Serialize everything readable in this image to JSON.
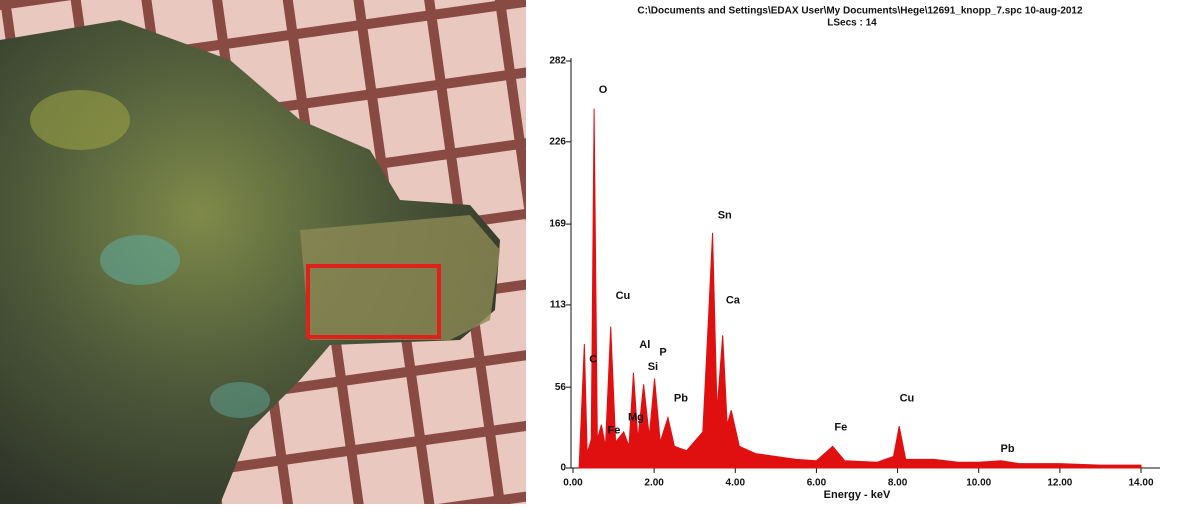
{
  "chart_data": {
    "type": "area",
    "title": "C:\\Documents and Settings\\EDAX User\\My Documents\\Hege\\12691_knopp_7.spc  10-aug-2012",
    "subtitle": "LSecs : 14",
    "x_label": "Energy - keV",
    "color": "#e01010",
    "xlim": [
      0,
      14.4
    ],
    "ylim": [
      0,
      282
    ],
    "xticks": [
      {
        "value": 0,
        "label": "0.00"
      },
      {
        "value": 2,
        "label": "2.00"
      },
      {
        "value": 4,
        "label": "4.00"
      },
      {
        "value": 6,
        "label": "6.00"
      },
      {
        "value": 8,
        "label": "8.00"
      },
      {
        "value": 10,
        "label": "10.00"
      },
      {
        "value": 12,
        "label": "12.00"
      },
      {
        "value": 14,
        "label": "14.00"
      }
    ],
    "yticks": [
      0,
      56,
      113,
      169,
      226,
      282
    ],
    "x": [
      0.15,
      0.28,
      0.35,
      0.45,
      0.52,
      0.6,
      0.7,
      0.8,
      0.93,
      1.05,
      1.25,
      1.38,
      1.49,
      1.6,
      1.74,
      1.88,
      2.01,
      2.15,
      2.34,
      2.5,
      2.8,
      3.2,
      3.35,
      3.44,
      3.55,
      3.69,
      3.8,
      3.9,
      4.1,
      4.5,
      5.0,
      5.5,
      6.0,
      6.4,
      6.7,
      7.5,
      7.9,
      8.04,
      8.2,
      8.9,
      9.5,
      10.0,
      10.55,
      11.0,
      12.0,
      13.0,
      14.0
    ],
    "values": [
      0,
      86,
      10,
      20,
      249,
      20,
      30,
      15,
      98,
      18,
      25,
      15,
      66,
      20,
      58,
      22,
      62,
      18,
      35,
      15,
      12,
      25,
      110,
      163,
      40,
      92,
      30,
      40,
      15,
      10,
      8,
      6,
      5,
      15,
      5,
      4,
      8,
      29,
      6,
      6,
      4,
      4,
      5,
      3,
      3,
      2,
      2
    ],
    "annotations": [
      {
        "text": "O",
        "x": 0.74,
        "y": 262
      },
      {
        "text": "C",
        "x": 0.5,
        "y": 75
      },
      {
        "text": "Cu",
        "x": 1.23,
        "y": 119
      },
      {
        "text": "Al",
        "x": 1.77,
        "y": 85
      },
      {
        "text": "P",
        "x": 2.22,
        "y": 80
      },
      {
        "text": "Si",
        "x": 1.97,
        "y": 70
      },
      {
        "text": "Mg",
        "x": 1.55,
        "y": 35
      },
      {
        "text": "Fe",
        "x": 1.01,
        "y": 26
      },
      {
        "text": "Pb",
        "x": 2.66,
        "y": 48
      },
      {
        "text": "Sn",
        "x": 3.74,
        "y": 175
      },
      {
        "text": "Ca",
        "x": 3.94,
        "y": 116
      },
      {
        "text": "Fe",
        "x": 6.6,
        "y": 28
      },
      {
        "text": "Cu",
        "x": 8.23,
        "y": 48
      },
      {
        "text": "Pb",
        "x": 10.71,
        "y": 13
      }
    ]
  }
}
